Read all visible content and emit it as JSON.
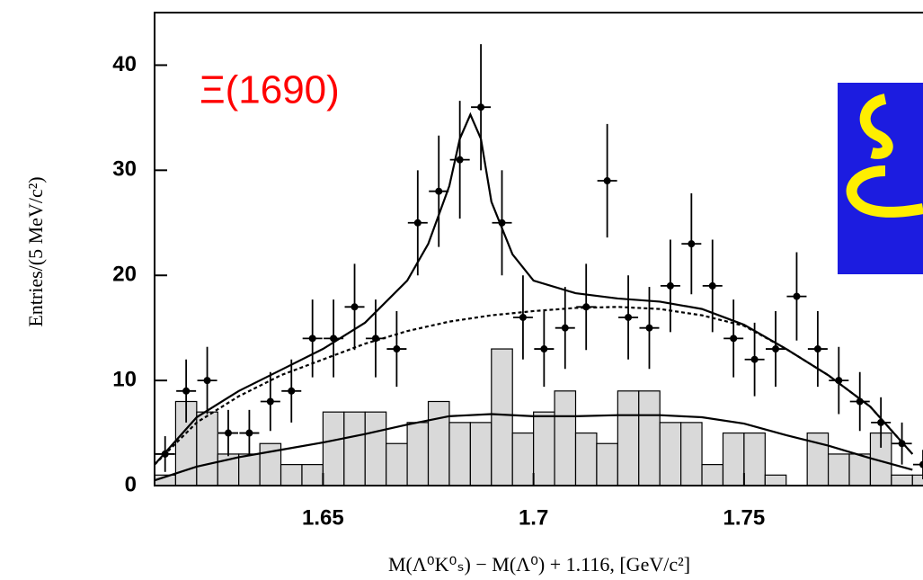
{
  "chart_data": {
    "type": "errorbar",
    "annotation": "Ξ(1690)",
    "annotation_color": "#ff0000",
    "xlabel": "M(Λ⁰K⁰ₛ) − M(Λ⁰) + 1.116,   [GeV/c²]",
    "ylabel": "Entries/(5 MeV/c²)",
    "xlim": [
      1.61,
      1.7925
    ],
    "ylim": [
      0,
      45
    ],
    "xticks": [
      1.65,
      1.7,
      1.75
    ],
    "yticks": [
      0,
      10,
      20,
      30,
      40
    ],
    "x": [
      1.6125,
      1.6175,
      1.6225,
      1.6275,
      1.6325,
      1.6375,
      1.6425,
      1.6475,
      1.6525,
      1.6575,
      1.6625,
      1.6675,
      1.6725,
      1.6775,
      1.6825,
      1.6875,
      1.6925,
      1.6975,
      1.7025,
      1.7075,
      1.7125,
      1.7175,
      1.7225,
      1.7275,
      1.7325,
      1.7375,
      1.7425,
      1.7475,
      1.7525,
      1.7575,
      1.7625,
      1.7675,
      1.7725,
      1.7775,
      1.7825,
      1.7875,
      1.7925
    ],
    "values": [
      3,
      9,
      10,
      5,
      5,
      8,
      9,
      14,
      14,
      17,
      14,
      13,
      25,
      28,
      31,
      36,
      25,
      16,
      13,
      15,
      17,
      29,
      16,
      15,
      19,
      23,
      19,
      14,
      12,
      13,
      18,
      13,
      10,
      8,
      6,
      4,
      2
    ],
    "errors": [
      1.7,
      3,
      3.2,
      2.2,
      2.2,
      2.8,
      3,
      3.7,
      3.7,
      4.1,
      3.7,
      3.6,
      5,
      5.3,
      5.6,
      6,
      5,
      4,
      3.6,
      3.9,
      4.1,
      5.4,
      4,
      3.9,
      4.4,
      4.8,
      4.4,
      3.7,
      3.5,
      3.6,
      4.2,
      3.6,
      3.2,
      2.8,
      2.4,
      2,
      1.4
    ],
    "color": "#000000",
    "histogram": {
      "color": "#d9d9d9",
      "bins": [
        1.61,
        1.615,
        1.62,
        1.625,
        1.63,
        1.635,
        1.64,
        1.645,
        1.65,
        1.655,
        1.66,
        1.665,
        1.67,
        1.675,
        1.68,
        1.685,
        1.69,
        1.695,
        1.7,
        1.705,
        1.71,
        1.715,
        1.72,
        1.725,
        1.73,
        1.735,
        1.74,
        1.745,
        1.75,
        1.755,
        1.76,
        1.765,
        1.77,
        1.775,
        1.78,
        1.785,
        1.79,
        1.795
      ],
      "counts": [
        1,
        8,
        7,
        3,
        3,
        4,
        2,
        2,
        7,
        7,
        7,
        4,
        6,
        8,
        6,
        6,
        13,
        5,
        7,
        9,
        5,
        4,
        9,
        9,
        6,
        6,
        2,
        5,
        5,
        1,
        0,
        5,
        3,
        3,
        5,
        1,
        1
      ]
    },
    "fits": [
      {
        "style": "solid",
        "x": [
          1.61,
          1.62,
          1.63,
          1.64,
          1.65,
          1.66,
          1.67,
          1.675,
          1.68,
          1.6825,
          1.685,
          1.6875,
          1.69,
          1.695,
          1.7,
          1.71,
          1.72,
          1.73,
          1.74,
          1.75,
          1.76,
          1.77,
          1.78,
          1.79
        ],
        "values": [
          2,
          6.5,
          9,
          11,
          13,
          15.5,
          19.5,
          23,
          28.5,
          33,
          35.3,
          33,
          27,
          22,
          19.5,
          18.3,
          17.8,
          17.5,
          16.8,
          15.3,
          13,
          10.5,
          7.5,
          3
        ]
      },
      {
        "style": "dashed",
        "x": [
          1.61,
          1.62,
          1.63,
          1.64,
          1.65,
          1.66,
          1.67,
          1.68,
          1.69,
          1.7,
          1.71,
          1.72,
          1.73,
          1.74,
          1.75,
          1.76,
          1.77,
          1.78,
          1.79
        ],
        "values": [
          2,
          6,
          8.5,
          10.5,
          12,
          13.5,
          14.7,
          15.6,
          16.2,
          16.6,
          16.9,
          17,
          16.8,
          16.2,
          15.2,
          13,
          10.5,
          7.5,
          3
        ]
      },
      {
        "style": "solid",
        "x": [
          1.61,
          1.62,
          1.63,
          1.64,
          1.65,
          1.66,
          1.67,
          1.68,
          1.69,
          1.7,
          1.71,
          1.72,
          1.73,
          1.74,
          1.75,
          1.76,
          1.77,
          1.78,
          1.79
        ],
        "values": [
          0.5,
          1.8,
          2.7,
          3.4,
          4.1,
          4.9,
          5.8,
          6.6,
          6.8,
          6.6,
          6.6,
          6.7,
          6.7,
          6.5,
          5.9,
          4.8,
          3.8,
          2.6,
          1.5
        ]
      }
    ]
  }
}
